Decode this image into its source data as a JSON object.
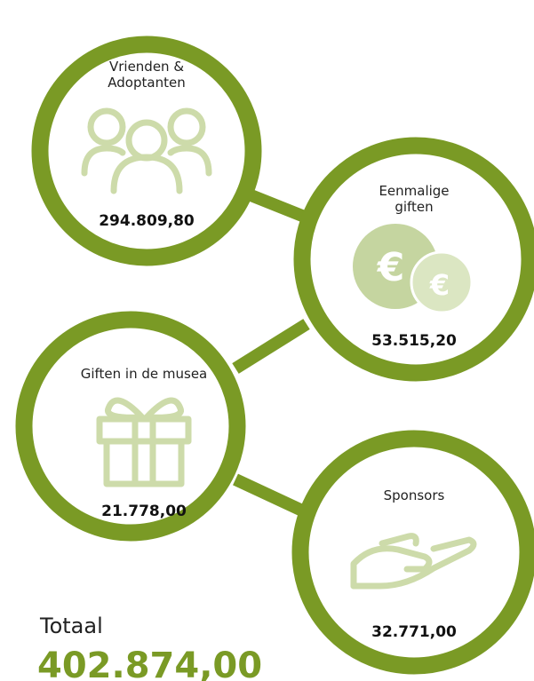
{
  "nodes": [
    {
      "label": [
        "Vrienden &",
        "Adoptanten"
      ],
      "amount": "294.809,80"
    },
    {
      "label": [
        "Eenmalige",
        "giften"
      ],
      "amount": "53.515,20"
    },
    {
      "label": [
        "Giften in de musea"
      ],
      "amount": "21.778,00"
    },
    {
      "label": [
        "Sponsors"
      ],
      "amount": "32.771,00"
    }
  ],
  "total": {
    "label": "Totaal",
    "value": "402.874,00"
  }
}
